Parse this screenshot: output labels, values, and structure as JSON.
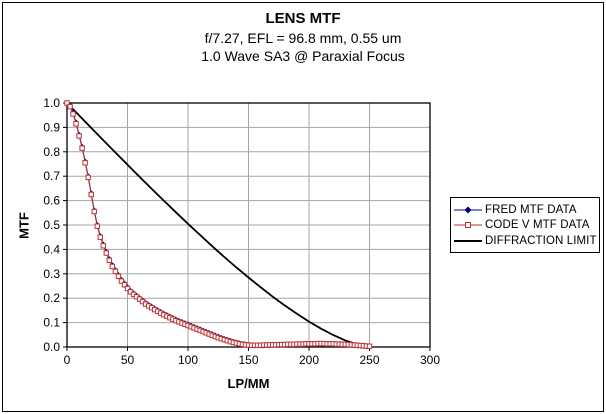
{
  "chart_data": {
    "type": "line",
    "title": "LENS MTF",
    "subtitle1": "f/7.27, EFL = 96.8 mm, 0.55 um",
    "subtitle2": "1.0 Wave SA3 @ Paraxial Focus",
    "xlabel": "LP/MM",
    "ylabel": "MTF",
    "xlim": [
      0,
      300
    ],
    "ylim": [
      0.0,
      1.0
    ],
    "xticks": [
      0,
      50,
      100,
      150,
      200,
      250,
      300
    ],
    "xtick_labels": [
      "0",
      "50",
      "100",
      "150",
      "200",
      "250",
      "300"
    ],
    "yticks": [
      0.0,
      0.1,
      0.2,
      0.3,
      0.4,
      0.5,
      0.6,
      0.7,
      0.8,
      0.9,
      1.0
    ],
    "ytick_labels": [
      "0.0",
      "0.1",
      "0.2",
      "0.3",
      "0.4",
      "0.5",
      "0.6",
      "0.7",
      "0.8",
      "0.9",
      "1.0"
    ],
    "grid": true,
    "grid_color": "#a6a6a6",
    "axis_color": "#000000",
    "background_color": "#ffffff",
    "legend_position": "right",
    "series": [
      {
        "name": "FRED MTF DATA",
        "color": "#000080",
        "marker": "diamond",
        "line_width": 1,
        "x": [
          0,
          2.5,
          5,
          7.5,
          10,
          12.5,
          15,
          17.5,
          20,
          22.5,
          25,
          27.5,
          30,
          32.5,
          35,
          37.5,
          40,
          42.5,
          45,
          47.5,
          50,
          52.5,
          55,
          57.5,
          60,
          62.5,
          65,
          67.5,
          70,
          72.5,
          75,
          77.5,
          80,
          82.5,
          85,
          87.5,
          90,
          92.5,
          95,
          97.5,
          100,
          102.5,
          105,
          107.5,
          110,
          112.5,
          115,
          117.5,
          120,
          122.5,
          125,
          127.5,
          130,
          132.5,
          135,
          137.5,
          140,
          142.5,
          145,
          147.5,
          150,
          152.5,
          155,
          157.5,
          160,
          162.5,
          165,
          167.5,
          170,
          172.5,
          175,
          177.5,
          180,
          182.5,
          185,
          187.5,
          190,
          192.5,
          195,
          197.5,
          200,
          202.5,
          205,
          207.5,
          210,
          212.5,
          215,
          217.5,
          220,
          222.5,
          225,
          227.5,
          230,
          232.5,
          235,
          237.5,
          240,
          242.5,
          245,
          247.5,
          250
        ],
        "y": [
          1.0,
          0.99,
          0.96,
          0.92,
          0.87,
          0.82,
          0.76,
          0.7,
          0.63,
          0.56,
          0.5,
          0.455,
          0.42,
          0.39,
          0.36,
          0.335,
          0.315,
          0.295,
          0.275,
          0.26,
          0.245,
          0.23,
          0.22,
          0.21,
          0.2,
          0.19,
          0.18,
          0.172,
          0.165,
          0.157,
          0.15,
          0.143,
          0.136,
          0.13,
          0.124,
          0.118,
          0.112,
          0.107,
          0.102,
          0.097,
          0.092,
          0.087,
          0.082,
          0.077,
          0.072,
          0.067,
          0.062,
          0.057,
          0.052,
          0.047,
          0.042,
          0.037,
          0.033,
          0.029,
          0.025,
          0.021,
          0.018,
          0.015,
          0.012,
          0.01,
          0.008,
          0.007,
          0.006,
          0.006,
          0.006,
          0.006,
          0.007,
          0.007,
          0.008,
          0.008,
          0.008,
          0.009,
          0.009,
          0.01,
          0.01,
          0.01,
          0.011,
          0.011,
          0.011,
          0.012,
          0.012,
          0.012,
          0.012,
          0.013,
          0.013,
          0.013,
          0.012,
          0.012,
          0.012,
          0.011,
          0.011,
          0.01,
          0.01,
          0.009,
          0.008,
          0.007,
          0.006,
          0.005,
          0.004,
          0.003,
          0.002
        ]
      },
      {
        "name": "CODE V MTF DATA",
        "color": "#bb3333",
        "marker": "square-open",
        "line_width": 1,
        "x": [
          0,
          2.5,
          5,
          7.5,
          10,
          12.5,
          15,
          17.5,
          20,
          22.5,
          25,
          27.5,
          30,
          32.5,
          35,
          37.5,
          40,
          42.5,
          45,
          47.5,
          50,
          52.5,
          55,
          57.5,
          60,
          62.5,
          65,
          67.5,
          70,
          72.5,
          75,
          77.5,
          80,
          82.5,
          85,
          87.5,
          90,
          92.5,
          95,
          97.5,
          100,
          102.5,
          105,
          107.5,
          110,
          112.5,
          115,
          117.5,
          120,
          122.5,
          125,
          127.5,
          130,
          132.5,
          135,
          137.5,
          140,
          142.5,
          145,
          147.5,
          150,
          152.5,
          155,
          157.5,
          160,
          162.5,
          165,
          167.5,
          170,
          172.5,
          175,
          177.5,
          180,
          182.5,
          185,
          187.5,
          190,
          192.5,
          195,
          197.5,
          200,
          202.5,
          205,
          207.5,
          210,
          212.5,
          215,
          217.5,
          220,
          222.5,
          225,
          227.5,
          230,
          232.5,
          235,
          237.5,
          240,
          242.5,
          245,
          247.5,
          250
        ],
        "y": [
          1.0,
          0.985,
          0.955,
          0.915,
          0.865,
          0.815,
          0.755,
          0.695,
          0.625,
          0.555,
          0.495,
          0.45,
          0.415,
          0.385,
          0.355,
          0.33,
          0.31,
          0.29,
          0.27,
          0.255,
          0.24,
          0.226,
          0.216,
          0.206,
          0.196,
          0.186,
          0.176,
          0.168,
          0.161,
          0.153,
          0.146,
          0.139,
          0.132,
          0.126,
          0.12,
          0.114,
          0.108,
          0.103,
          0.098,
          0.093,
          0.088,
          0.083,
          0.078,
          0.073,
          0.068,
          0.063,
          0.058,
          0.053,
          0.048,
          0.043,
          0.038,
          0.034,
          0.03,
          0.026,
          0.022,
          0.019,
          0.016,
          0.013,
          0.011,
          0.009,
          0.008,
          0.007,
          0.007,
          0.007,
          0.007,
          0.008,
          0.008,
          0.009,
          0.009,
          0.009,
          0.01,
          0.01,
          0.01,
          0.011,
          0.011,
          0.011,
          0.012,
          0.012,
          0.012,
          0.013,
          0.013,
          0.013,
          0.013,
          0.014,
          0.014,
          0.014,
          0.013,
          0.013,
          0.013,
          0.012,
          0.012,
          0.011,
          0.011,
          0.01,
          0.009,
          0.008,
          0.007,
          0.006,
          0.005,
          0.004,
          0.003
        ]
      },
      {
        "name": "DIFFRACTION LIMIT",
        "color": "#000000",
        "marker": "none",
        "line_width": 1.8,
        "x": [
          0,
          10,
          20,
          30,
          40,
          50,
          60,
          70,
          80,
          90,
          100,
          110,
          120,
          130,
          140,
          150,
          160,
          170,
          180,
          190,
          200,
          210,
          220,
          230,
          240,
          250
        ],
        "y": [
          1.0,
          0.949,
          0.898,
          0.847,
          0.797,
          0.747,
          0.697,
          0.648,
          0.6,
          0.552,
          0.505,
          0.459,
          0.413,
          0.369,
          0.326,
          0.285,
          0.245,
          0.206,
          0.17,
          0.136,
          0.104,
          0.075,
          0.049,
          0.027,
          0.01,
          0.0
        ]
      }
    ]
  }
}
